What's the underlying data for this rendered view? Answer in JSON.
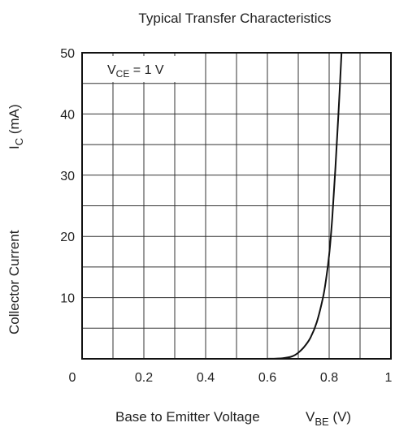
{
  "chart_data": {
    "type": "line",
    "title": "Typical Transfer Characteristics",
    "annotation": {
      "main": "V",
      "sub": "CE",
      "rest": " = 1 V"
    },
    "xlabel": {
      "main": "Base to Emitter Voltage",
      "sym": "V",
      "sub": "BE",
      "unit": " (V)"
    },
    "ylabel": {
      "main": "Collector Current",
      "sym": "I",
      "sub": "C",
      "unit": "  (mA)"
    },
    "xlim": [
      0,
      1
    ],
    "ylim": [
      0,
      50
    ],
    "x_ticks": [
      {
        "value": 0,
        "label": "0"
      },
      {
        "value": 0.2,
        "label": "0.2"
      },
      {
        "value": 0.4,
        "label": "0.4"
      },
      {
        "value": 0.6,
        "label": "0.6"
      },
      {
        "value": 0.8,
        "label": "0.8"
      },
      {
        "value": 1,
        "label": "1"
      }
    ],
    "y_ticks": [
      {
        "value": 10,
        "label": "10"
      },
      {
        "value": 20,
        "label": "20"
      },
      {
        "value": 30,
        "label": "30"
      },
      {
        "value": 40,
        "label": "40"
      },
      {
        "value": 50,
        "label": "50"
      }
    ],
    "grid": {
      "x_step": 0.1,
      "y_step": 5
    },
    "colors": {
      "line": "#111111",
      "grid": "#333333",
      "text": "#222222"
    },
    "series": [
      {
        "x": [
          0.6,
          0.65,
          0.68,
          0.7,
          0.72,
          0.74,
          0.76,
          0.78,
          0.79,
          0.8,
          0.81,
          0.82,
          0.83,
          0.84
        ],
        "y": [
          0,
          0.1,
          0.4,
          1,
          2,
          3.5,
          6,
          10,
          13,
          17,
          23,
          31,
          40,
          50
        ]
      }
    ]
  }
}
